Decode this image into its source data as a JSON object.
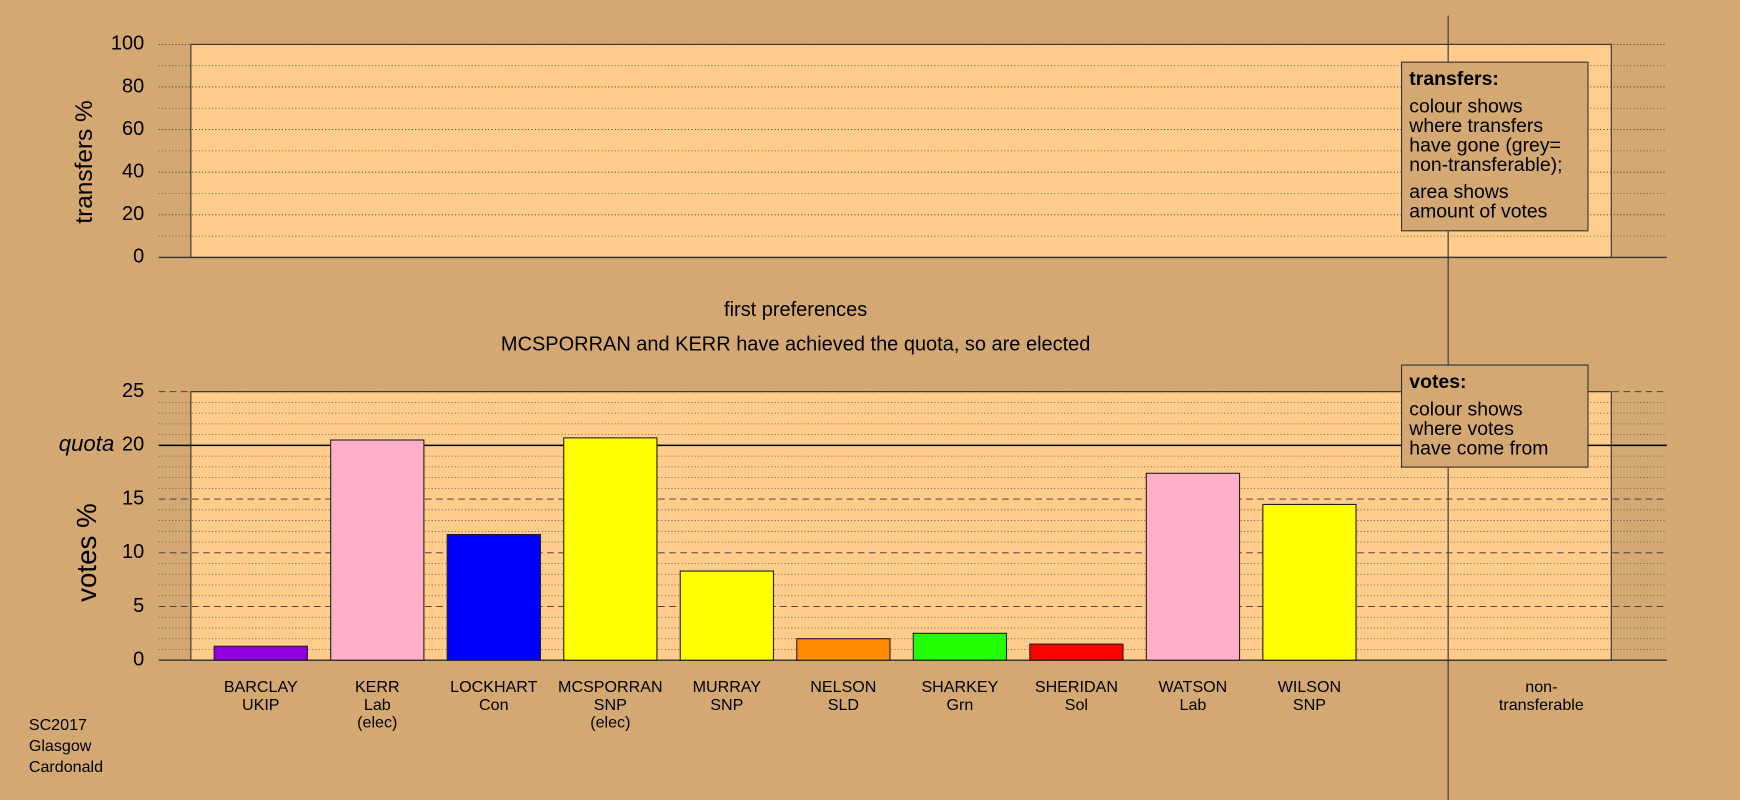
{
  "chart_data": [
    {
      "type": "bar",
      "ylabel": "transfers %",
      "ylim": [
        0,
        100
      ],
      "yticks": [
        0,
        20,
        40,
        60,
        80,
        100
      ],
      "grid": true,
      "legend": {
        "title": "transfers:",
        "lines": [
          "colour shows",
          "where transfers",
          "have gone (grey=",
          "non-transferable);",
          "area shows",
          "amount of votes"
        ]
      },
      "title": "first preferences"
    },
    {
      "type": "bar",
      "subtitle": "MCSPORRAN and KERR have achieved the quota, so are elected",
      "ylabel": "votes %",
      "ylim": [
        0,
        25
      ],
      "yticks": [
        0,
        5,
        10,
        15,
        20,
        25
      ],
      "grid": true,
      "quota": 20,
      "quota_label": "quota",
      "categories": [
        [
          "BARCLAY",
          "UKIP"
        ],
        [
          "KERR",
          "Lab",
          "(elec)"
        ],
        [
          "LOCKHART",
          "Con"
        ],
        [
          "MCSPORRAN",
          "SNP",
          "(elec)"
        ],
        [
          "MURRAY",
          "SNP"
        ],
        [
          "NELSON",
          "SLD"
        ],
        [
          "SHARKEY",
          "Grn"
        ],
        [
          "SHERIDAN",
          "Sol"
        ],
        [
          "WATSON",
          "Lab"
        ],
        [
          "WILSON",
          "SNP"
        ],
        [
          "non-",
          "transferable"
        ]
      ],
      "values": [
        1.3,
        20.5,
        11.7,
        20.7,
        8.3,
        2.0,
        2.5,
        1.5,
        17.4,
        14.5,
        null
      ],
      "colors": [
        "#9000e0",
        "#ffb0c8",
        "#0000ff",
        "#ffff00",
        "#ffff00",
        "#ff8c00",
        "#22ff00",
        "#ff0000",
        "#ffb0c8",
        "#ffff00",
        null
      ],
      "legend": {
        "title": "votes:",
        "lines": [
          "colour shows",
          "where votes",
          "have come from"
        ]
      }
    }
  ],
  "footer": [
    "SC2017",
    "Glasgow",
    "Cardonald"
  ]
}
